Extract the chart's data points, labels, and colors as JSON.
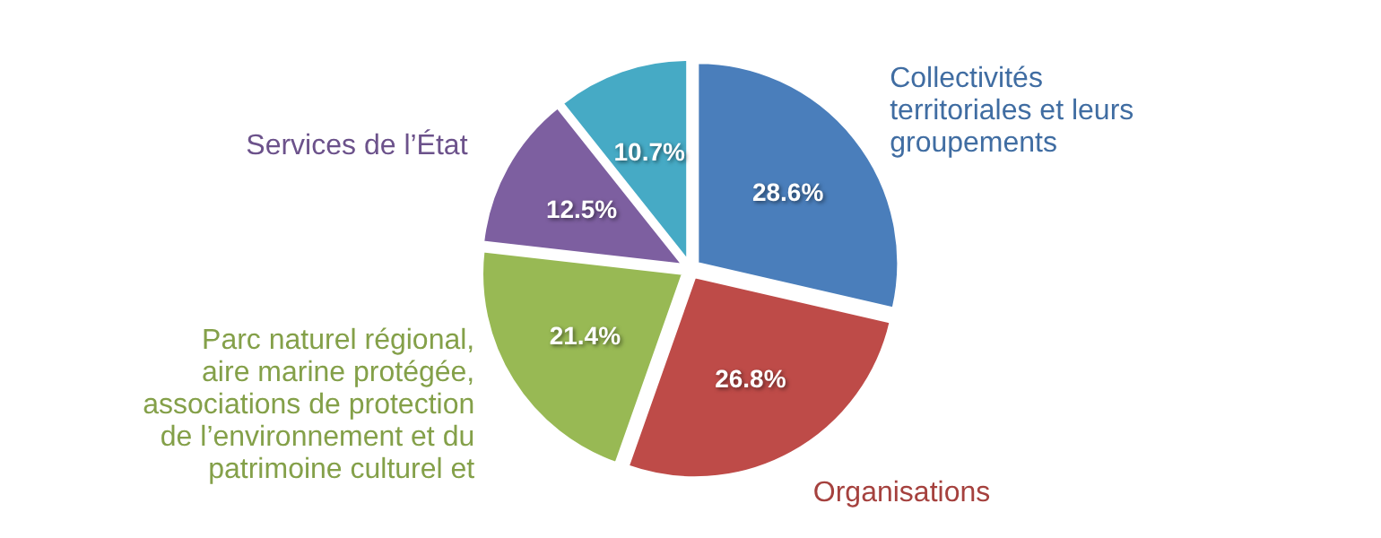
{
  "chart_data": {
    "type": "pie",
    "categories": [
      "Collectivités territoriales et leurs groupements",
      "Organisations",
      "Parc naturel régional, aire marine protégée, associations de protection de l’environnement et du patrimoine culturel et",
      "Services de l’État",
      null
    ],
    "values": [
      28.6,
      26.8,
      21.4,
      12.5,
      10.7
    ],
    "value_labels": [
      "28.6%",
      "26.8%",
      "21.4%",
      "12.5%",
      "10.7%"
    ],
    "colors": [
      "#4a7ebb",
      "#be4b48",
      "#98b954",
      "#7d5fa0",
      "#46aac5"
    ]
  }
}
